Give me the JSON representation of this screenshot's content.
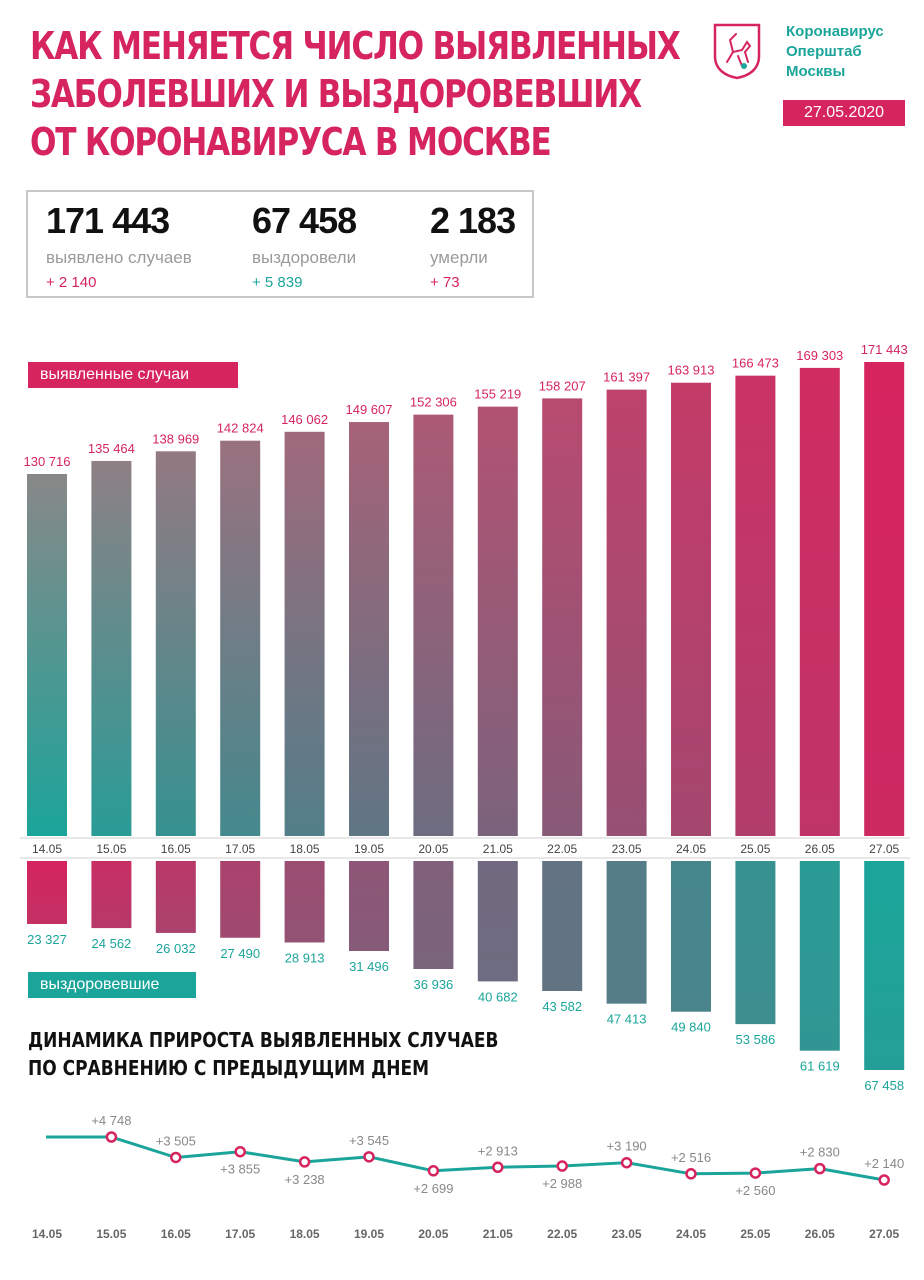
{
  "header": {
    "title_lines": [
      "КАК МЕНЯЕТСЯ ЧИСЛО ВЫЯВЛЕННЫХ",
      "ЗАБОЛЕВШИХ И ВЫЗДОРОВЕВШИХ",
      "ОТ КОРОНАВИРУСА В МОСКВЕ"
    ],
    "org_lines": [
      "Коронавирус",
      "Оперштаб",
      "Москвы"
    ],
    "date": "27.05.2020",
    "logo_icon": "moscow-coat-of-arms-icon"
  },
  "stats": [
    {
      "value": "171 443",
      "label": "выявлено случаев",
      "delta": "+ 2 140",
      "color": "#d6245f"
    },
    {
      "value": "67 458",
      "label": "выздоровели",
      "delta": "+ 5 839",
      "color": "#1ba59a"
    },
    {
      "value": "2 183",
      "label": "умерли",
      "delta": "+ 73",
      "color": "#d6245f"
    }
  ],
  "tags": {
    "cases": "выявленные случаи",
    "recovered": "выздоровевшие"
  },
  "subtitle_lines": [
    "ДИНАМИКА ПРИРОСТА ВЫЯВЛЕННЫХ СЛУЧАЕВ",
    "ПО СРАВНЕНИЮ С ПРЕДЫДУЩИМ ДНЕМ"
  ],
  "colors": {
    "pink": "#d6245f",
    "teal": "#1ba59a",
    "gray": "#888888",
    "axis_line": "#d0d0d0"
  },
  "chart_data": [
    {
      "type": "bar",
      "name": "выявленные случаи",
      "categories": [
        "14.05",
        "15.05",
        "16.05",
        "17.05",
        "18.05",
        "19.05",
        "20.05",
        "21.05",
        "22.05",
        "23.05",
        "24.05",
        "25.05",
        "26.05",
        "27.05"
      ],
      "values": [
        130716,
        135464,
        138969,
        142824,
        146062,
        149607,
        152306,
        155219,
        158207,
        161397,
        163913,
        166473,
        169303,
        171443
      ],
      "labels": [
        "130 716",
        "135 464",
        "138 969",
        "142 824",
        "146 062",
        "149 607",
        "152 306",
        "155 219",
        "158 207",
        "161 397",
        "163 913",
        "166 473",
        "169 303",
        "171 443"
      ]
    },
    {
      "type": "bar",
      "name": "выздоровевшие",
      "categories": [
        "14.05",
        "15.05",
        "16.05",
        "17.05",
        "18.05",
        "19.05",
        "20.05",
        "21.05",
        "22.05",
        "23.05",
        "24.05",
        "25.05",
        "26.05",
        "27.05"
      ],
      "values": [
        23327,
        24562,
        26032,
        27490,
        28913,
        31496,
        36936,
        40682,
        43582,
        47413,
        49840,
        53586,
        61619,
        67458
      ],
      "labels": [
        "23 327",
        "24 562",
        "26 032",
        "27 490",
        "28 913",
        "31 496",
        "36 936",
        "40 682",
        "43 582",
        "47 413",
        "49 840",
        "53 586",
        "61 619",
        "67 458"
      ]
    },
    {
      "type": "line",
      "categories": [
        "14.05",
        "15.05",
        "16.05",
        "17.05",
        "18.05",
        "19.05",
        "20.05",
        "21.05",
        "22.05",
        "23.05",
        "24.05",
        "25.05",
        "26.05",
        "27.05"
      ],
      "values": [
        null,
        4748,
        3505,
        3855,
        3238,
        3545,
        2699,
        2913,
        2988,
        3190,
        2516,
        2560,
        2830,
        2140
      ],
      "labels": [
        "",
        "+4 748",
        "+3 505",
        "+3 855",
        "+3 238",
        "+3 545",
        "+2 699",
        "+2 913",
        "+2 988",
        "+3 190",
        "+2 516",
        "+2 560",
        "+2 830",
        "+2 140"
      ]
    }
  ]
}
